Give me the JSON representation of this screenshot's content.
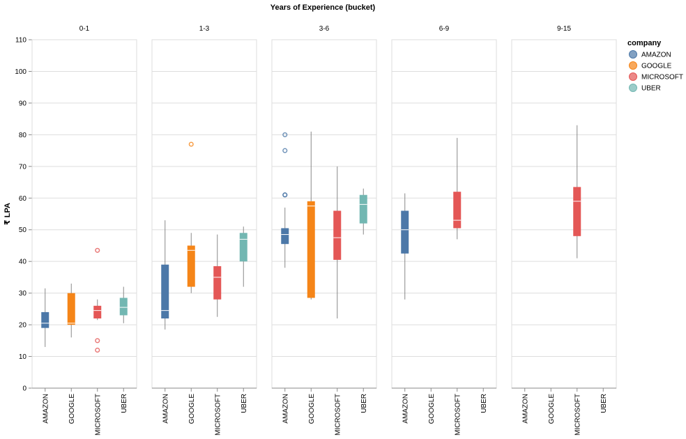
{
  "chart_data": {
    "type": "boxplot",
    "title": "Years of Experience (bucket)",
    "ylabel": "₹ LPA",
    "ylim": [
      0,
      110
    ],
    "yticks": [
      0,
      10,
      20,
      30,
      40,
      50,
      60,
      70,
      80,
      90,
      100,
      110
    ],
    "grid": true,
    "legend_title": "company",
    "legend_position": "top-right",
    "categories": [
      "AMAZON",
      "GOOGLE",
      "MICROSOFT",
      "UBER"
    ],
    "colors": {
      "AMAZON": "#4c78a8",
      "GOOGLE": "#f58518",
      "MICROSOFT": "#e45756",
      "UBER": "#72b7b2"
    },
    "facets": [
      {
        "label": "0-1",
        "boxes": [
          {
            "company": "AMAZON",
            "min": 13,
            "q1": 19,
            "median": 20.5,
            "q3": 24,
            "max": 31.5,
            "outliers": []
          },
          {
            "company": "GOOGLE",
            "min": 16,
            "q1": 20,
            "median": 20.5,
            "q3": 30,
            "max": 33,
            "outliers": []
          },
          {
            "company": "MICROSOFT",
            "min": 21.5,
            "q1": 22,
            "median": 24.5,
            "q3": 26,
            "max": 28,
            "outliers": [
              43.5,
              15,
              12
            ]
          },
          {
            "company": "UBER",
            "min": 20.5,
            "q1": 23,
            "median": 25.5,
            "q3": 28.5,
            "max": 32,
            "outliers": []
          }
        ]
      },
      {
        "label": "1-3",
        "boxes": [
          {
            "company": "AMAZON",
            "min": 18.5,
            "q1": 22,
            "median": 24.5,
            "q3": 39,
            "max": 53,
            "outliers": []
          },
          {
            "company": "GOOGLE",
            "min": 30,
            "q1": 32,
            "median": 43.5,
            "q3": 45,
            "max": 49,
            "outliers": [
              77
            ]
          },
          {
            "company": "MICROSOFT",
            "min": 22.5,
            "q1": 28,
            "median": 35,
            "q3": 38.5,
            "max": 48.5,
            "outliers": []
          },
          {
            "company": "UBER",
            "min": 32,
            "q1": 40,
            "median": 47,
            "q3": 49,
            "max": 51,
            "outliers": []
          }
        ]
      },
      {
        "label": "3-6",
        "boxes": [
          {
            "company": "AMAZON",
            "min": 38,
            "q1": 45.5,
            "median": 48.5,
            "q3": 50.5,
            "max": 57,
            "outliers": [
              80,
              75,
              61,
              61
            ]
          },
          {
            "company": "GOOGLE",
            "min": 28,
            "q1": 28.5,
            "median": 57.5,
            "q3": 59,
            "max": 81,
            "outliers": []
          },
          {
            "company": "MICROSOFT",
            "min": 22,
            "q1": 40.5,
            "median": 47.5,
            "q3": 56,
            "max": 70,
            "outliers": []
          },
          {
            "company": "UBER",
            "min": 48.5,
            "q1": 52,
            "median": 58,
            "q3": 61,
            "max": 63,
            "outliers": []
          }
        ]
      },
      {
        "label": "6-9",
        "boxes": [
          {
            "company": "AMAZON",
            "min": 28,
            "q1": 42.5,
            "median": 50,
            "q3": 56,
            "max": 61.5,
            "outliers": []
          },
          {
            "company": "MICROSOFT",
            "min": 47,
            "q1": 50.5,
            "median": 53,
            "q3": 62,
            "max": 79,
            "outliers": []
          }
        ]
      },
      {
        "label": "9-15",
        "boxes": [
          {
            "company": "MICROSOFT",
            "min": 41,
            "q1": 48,
            "median": 59,
            "q3": 63.5,
            "max": 83,
            "outliers": []
          }
        ]
      }
    ]
  }
}
